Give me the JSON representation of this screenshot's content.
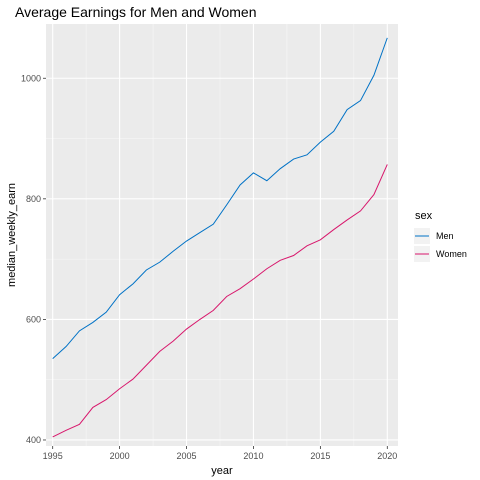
{
  "chart_data": {
    "type": "line",
    "title": "Average Earnings for Men and Women",
    "xlabel": "year",
    "ylabel": "median_weekly_earn",
    "xlim": [
      1994.5,
      2020.8
    ],
    "ylim": [
      390,
      1090
    ],
    "x_ticks": [
      1995,
      2000,
      2005,
      2010,
      2015,
      2020
    ],
    "y_ticks": [
      400,
      600,
      800,
      1000
    ],
    "grid": true,
    "legend_position": "right",
    "legend_title": "sex",
    "x": [
      1995,
      1996,
      1997,
      1998,
      1999,
      2000,
      2001,
      2002,
      2003,
      2004,
      2005,
      2006,
      2007,
      2008,
      2009,
      2010,
      2011,
      2012,
      2013,
      2014,
      2015,
      2016,
      2017,
      2018,
      2019,
      2020
    ],
    "series": [
      {
        "name": "Men",
        "color": "#0072c6",
        "values": [
          535,
          555,
          581,
          595,
          612,
          641,
          659,
          682,
          695,
          713,
          730,
          744,
          758,
          790,
          823,
          843,
          830,
          850,
          866,
          873,
          894,
          912,
          948,
          963,
          1005,
          1067
        ]
      },
      {
        "name": "Women",
        "color": "#d8176c",
        "values": [
          405,
          416,
          426,
          454,
          467,
          485,
          501,
          524,
          547,
          564,
          584,
          600,
          615,
          638,
          651,
          667,
          684,
          698,
          706,
          722,
          732,
          749,
          765,
          780,
          807,
          857
        ]
      }
    ]
  }
}
